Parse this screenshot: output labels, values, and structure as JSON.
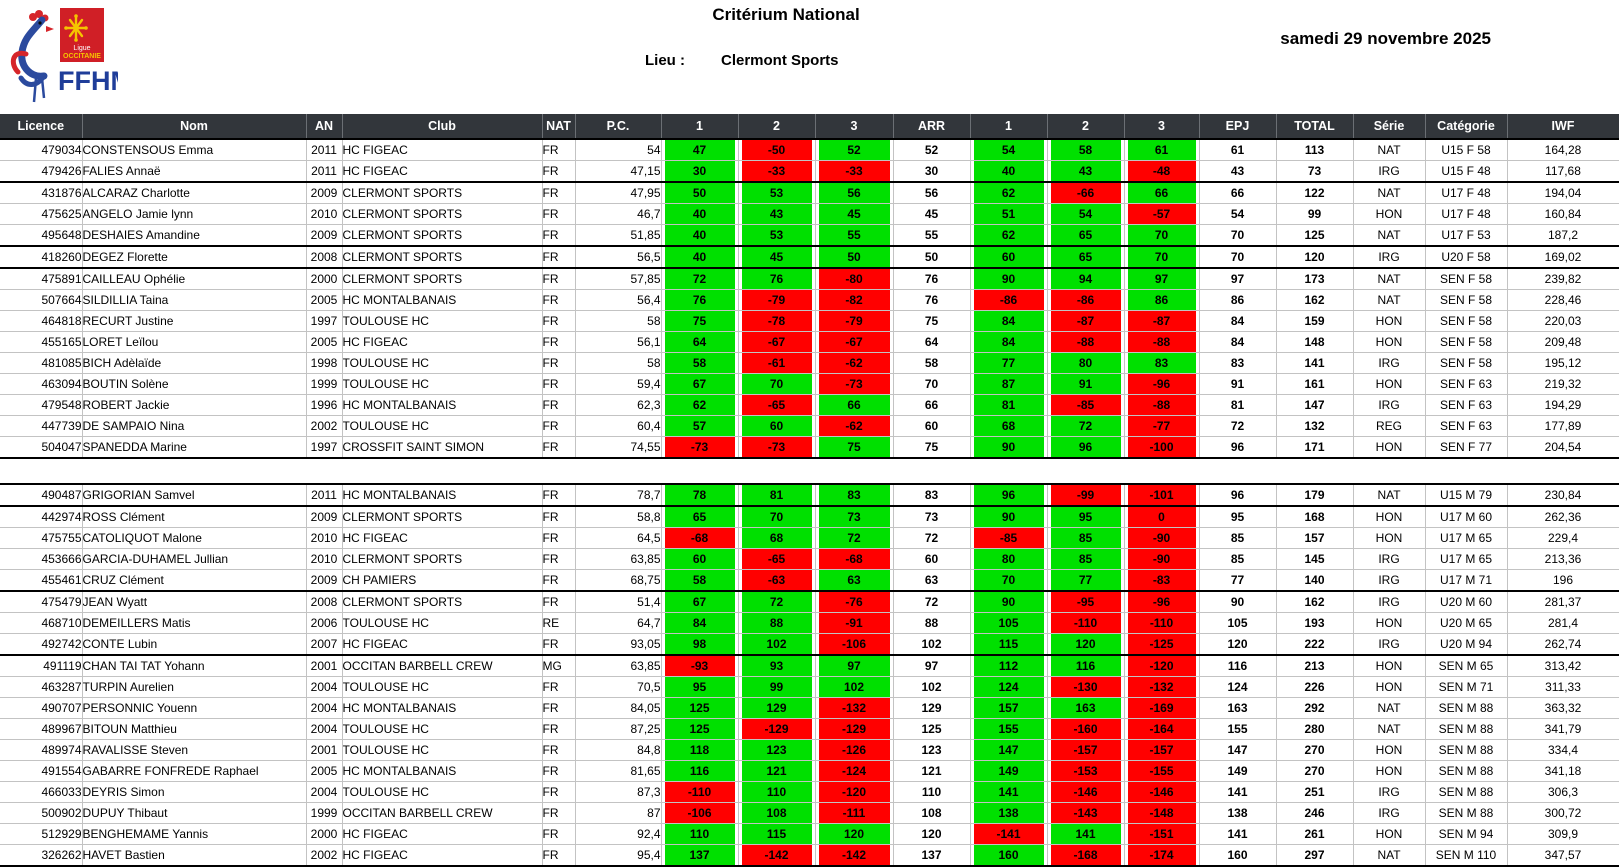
{
  "header": {
    "title": "Critérium National",
    "date": "samedi 29 novembre 2025",
    "lieu_label": "Lieu :",
    "lieu_value": "Clermont Sports",
    "logo": {
      "ffhm": "FFHM",
      "ligue": "Ligue",
      "occitanie": "OCCITANIE"
    }
  },
  "table": {
    "columns": [
      "Licence",
      "Nom",
      "AN",
      "Club",
      "NAT",
      "P.C.",
      "1",
      "2",
      "3",
      "ARR",
      "1",
      "2",
      "3",
      "EPJ",
      "TOTAL",
      "Série",
      "Catégorie",
      "IWF"
    ],
    "colors": {
      "good_lift": "#00e000",
      "failed_lift": "#ff0000",
      "header_bg": "#32363b"
    },
    "sections": [
      {
        "rows": [
          {
            "licence": "479034",
            "nom": "CONSTENSOUS Emma",
            "an": "2011",
            "club": "HC FIGEAC",
            "nat": "FR",
            "pc": "54",
            "s1": 47,
            "s2": -50,
            "s3": 52,
            "arr": "52",
            "c1": 54,
            "c2": 58,
            "c3": 61,
            "epj": "61",
            "total": "113",
            "serie": "NAT",
            "categorie": "U15 F 58",
            "iwf": "164,28",
            "ge": false
          },
          {
            "licence": "479426",
            "nom": "FALIES Annaë",
            "an": "2011",
            "club": "HC FIGEAC",
            "nat": "FR",
            "pc": "47,15",
            "s1": 30,
            "s2": -33,
            "s3": -33,
            "arr": "30",
            "c1": 40,
            "c2": 43,
            "c3": -48,
            "epj": "43",
            "total": "73",
            "serie": "IRG",
            "categorie": "U15 F 48",
            "iwf": "117,68",
            "ge": true
          },
          {
            "licence": "431876",
            "nom": "ALCARAZ Charlotte",
            "an": "2009",
            "club": "CLERMONT SPORTS",
            "nat": "FR",
            "pc": "47,95",
            "s1": 50,
            "s2": 53,
            "s3": 56,
            "arr": "56",
            "c1": 62,
            "c2": -66,
            "c3": 66,
            "epj": "66",
            "total": "122",
            "serie": "NAT",
            "categorie": "U17 F 48",
            "iwf": "194,04",
            "ge": false
          },
          {
            "licence": "475625",
            "nom": "ANGELO Jamie lynn",
            "an": "2010",
            "club": "CLERMONT SPORTS",
            "nat": "FR",
            "pc": "46,7",
            "s1": 40,
            "s2": 43,
            "s3": 45,
            "arr": "45",
            "c1": 51,
            "c2": 54,
            "c3": -57,
            "epj": "54",
            "total": "99",
            "serie": "HON",
            "categorie": "U17 F 48",
            "iwf": "160,84",
            "ge": false
          },
          {
            "licence": "495648",
            "nom": "DESHAIES Amandine",
            "an": "2009",
            "club": "CLERMONT SPORTS",
            "nat": "FR",
            "pc": "51,85",
            "s1": 40,
            "s2": 53,
            "s3": 55,
            "arr": "55",
            "c1": 62,
            "c2": 65,
            "c3": 70,
            "epj": "70",
            "total": "125",
            "serie": "NAT",
            "categorie": "U17 F 53",
            "iwf": "187,2",
            "ge": true
          },
          {
            "licence": "418260",
            "nom": "DEGEZ Florette",
            "an": "2008",
            "club": "CLERMONT SPORTS",
            "nat": "FR",
            "pc": "56,5",
            "s1": 40,
            "s2": 45,
            "s3": 50,
            "arr": "50",
            "c1": 60,
            "c2": 65,
            "c3": 70,
            "epj": "70",
            "total": "120",
            "serie": "IRG",
            "categorie": "U20 F 58",
            "iwf": "169,02",
            "ge": true
          },
          {
            "licence": "475891",
            "nom": "CAILLEAU Ophélie",
            "an": "2000",
            "club": "CLERMONT SPORTS",
            "nat": "FR",
            "pc": "57,85",
            "s1": 72,
            "s2": 76,
            "s3": -80,
            "arr": "76",
            "c1": 90,
            "c2": 94,
            "c3": 97,
            "epj": "97",
            "total": "173",
            "serie": "NAT",
            "categorie": "SEN F 58",
            "iwf": "239,82",
            "ge": false
          },
          {
            "licence": "507664",
            "nom": "SILDILLIA Taina",
            "an": "2005",
            "club": "HC MONTALBANAIS",
            "nat": "FR",
            "pc": "56,4",
            "s1": 76,
            "s2": -79,
            "s3": -82,
            "arr": "76",
            "c1": -86,
            "c2": -86,
            "c3": 86,
            "epj": "86",
            "total": "162",
            "serie": "NAT",
            "categorie": "SEN F 58",
            "iwf": "228,46",
            "ge": false
          },
          {
            "licence": "464818",
            "nom": "RECURT Justine",
            "an": "1997",
            "club": "TOULOUSE HC",
            "nat": "FR",
            "pc": "58",
            "s1": 75,
            "s2": -78,
            "s3": -79,
            "arr": "75",
            "c1": 84,
            "c2": -87,
            "c3": -87,
            "epj": "84",
            "total": "159",
            "serie": "HON",
            "categorie": "SEN F 58",
            "iwf": "220,03",
            "ge": false
          },
          {
            "licence": "455165",
            "nom": "LORET Leïlou",
            "an": "2005",
            "club": "HC FIGEAC",
            "nat": "FR",
            "pc": "56,1",
            "s1": 64,
            "s2": -67,
            "s3": -67,
            "arr": "64",
            "c1": 84,
            "c2": -88,
            "c3": -88,
            "epj": "84",
            "total": "148",
            "serie": "HON",
            "categorie": "SEN F 58",
            "iwf": "209,48",
            "ge": false
          },
          {
            "licence": "481085",
            "nom": "BICH Adèlaïde",
            "an": "1998",
            "club": "TOULOUSE HC",
            "nat": "FR",
            "pc": "58",
            "s1": 58,
            "s2": -61,
            "s3": -62,
            "arr": "58",
            "c1": 77,
            "c2": 80,
            "c3": 83,
            "epj": "83",
            "total": "141",
            "serie": "IRG",
            "categorie": "SEN F 58",
            "iwf": "195,12",
            "ge": false
          },
          {
            "licence": "463094",
            "nom": "BOUTIN Solène",
            "an": "1999",
            "club": "TOULOUSE HC",
            "nat": "FR",
            "pc": "59,4",
            "s1": 67,
            "s2": 70,
            "s3": -73,
            "arr": "70",
            "c1": 87,
            "c2": 91,
            "c3": -96,
            "epj": "91",
            "total": "161",
            "serie": "HON",
            "categorie": "SEN F 63",
            "iwf": "219,32",
            "ge": false
          },
          {
            "licence": "479548",
            "nom": "ROBERT Jackie",
            "an": "1996",
            "club": "HC MONTALBANAIS",
            "nat": "FR",
            "pc": "62,3",
            "s1": 62,
            "s2": -65,
            "s3": 66,
            "arr": "66",
            "c1": 81,
            "c2": -85,
            "c3": -88,
            "epj": "81",
            "total": "147",
            "serie": "IRG",
            "categorie": "SEN F 63",
            "iwf": "194,29",
            "ge": false
          },
          {
            "licence": "447739",
            "nom": "DE SAMPAIO Nina",
            "an": "2002",
            "club": "TOULOUSE HC",
            "nat": "FR",
            "pc": "60,4",
            "s1": 57,
            "s2": 60,
            "s3": -62,
            "arr": "60",
            "c1": 68,
            "c2": 72,
            "c3": -77,
            "epj": "72",
            "total": "132",
            "serie": "REG",
            "categorie": "SEN F 63",
            "iwf": "177,89",
            "ge": false
          },
          {
            "licence": "504047",
            "nom": "SPANEDDA Marine",
            "an": "1997",
            "club": "CROSSFIT SAINT SIMON",
            "nat": "FR",
            "pc": "74,55",
            "s1": -73,
            "s2": -73,
            "s3": 75,
            "arr": "75",
            "c1": 90,
            "c2": 96,
            "c3": -100,
            "epj": "96",
            "total": "171",
            "serie": "HON",
            "categorie": "SEN F 77",
            "iwf": "204,54",
            "ge": true
          }
        ]
      },
      {
        "rows": [
          {
            "licence": "490487",
            "nom": "GRIGORIAN Samvel",
            "an": "2011",
            "club": "HC MONTALBANAIS",
            "nat": "FR",
            "pc": "78,7",
            "s1": 78,
            "s2": 81,
            "s3": 83,
            "arr": "83",
            "c1": 96,
            "c2": -99,
            "c3": -101,
            "epj": "96",
            "total": "179",
            "serie": "NAT",
            "categorie": "U15 M 79",
            "iwf": "230,84",
            "ge": true
          },
          {
            "licence": "442974",
            "nom": "ROSS Clément",
            "an": "2009",
            "club": "CLERMONT SPORTS",
            "nat": "FR",
            "pc": "58,8",
            "s1": 65,
            "s2": 70,
            "s3": 73,
            "arr": "73",
            "c1": 90,
            "c2": 95,
            "c3": 0,
            "epj": "95",
            "total": "168",
            "serie": "HON",
            "categorie": "U17 M 60",
            "iwf": "262,36",
            "ge": false
          },
          {
            "licence": "475755",
            "nom": "CATOLIQUOT Malone",
            "an": "2010",
            "club": "HC FIGEAC",
            "nat": "FR",
            "pc": "64,5",
            "s1": -68,
            "s2": 68,
            "s3": 72,
            "arr": "72",
            "c1": -85,
            "c2": 85,
            "c3": -90,
            "epj": "85",
            "total": "157",
            "serie": "HON",
            "categorie": "U17 M 65",
            "iwf": "229,4",
            "ge": false
          },
          {
            "licence": "453666",
            "nom": "GARCIA-DUHAMEL Jullian",
            "an": "2010",
            "club": "CLERMONT SPORTS",
            "nat": "FR",
            "pc": "63,85",
            "s1": 60,
            "s2": -65,
            "s3": -68,
            "arr": "60",
            "c1": 80,
            "c2": 85,
            "c3": -90,
            "epj": "85",
            "total": "145",
            "serie": "IRG",
            "categorie": "U17 M 65",
            "iwf": "213,36",
            "ge": false
          },
          {
            "licence": "455461",
            "nom": "CRUZ Clément",
            "an": "2009",
            "club": "CH PAMIERS",
            "nat": "FR",
            "pc": "68,75",
            "s1": 58,
            "s2": -63,
            "s3": 63,
            "arr": "63",
            "c1": 70,
            "c2": 77,
            "c3": -83,
            "epj": "77",
            "total": "140",
            "serie": "IRG",
            "categorie": "U17 M 71",
            "iwf": "196",
            "ge": true
          },
          {
            "licence": "475479",
            "nom": "JEAN Wyatt",
            "an": "2008",
            "club": "CLERMONT SPORTS",
            "nat": "FR",
            "pc": "51,4",
            "s1": 67,
            "s2": 72,
            "s3": -76,
            "arr": "72",
            "c1": 90,
            "c2": -95,
            "c3": -96,
            "epj": "90",
            "total": "162",
            "serie": "IRG",
            "categorie": "U20 M 60",
            "iwf": "281,37",
            "ge": false
          },
          {
            "licence": "468710",
            "nom": "DEMEILLERS Matis",
            "an": "2006",
            "club": "TOULOUSE HC",
            "nat": "RE",
            "pc": "64,7",
            "s1": 84,
            "s2": 88,
            "s3": -91,
            "arr": "88",
            "c1": 105,
            "c2": -110,
            "c3": -110,
            "epj": "105",
            "total": "193",
            "serie": "HON",
            "categorie": "U20 M 65",
            "iwf": "281,4",
            "ge": false
          },
          {
            "licence": "492742",
            "nom": "CONTE Lubin",
            "an": "2007",
            "club": "HC FIGEAC",
            "nat": "FR",
            "pc": "93,05",
            "s1": 98,
            "s2": 102,
            "s3": -106,
            "arr": "102",
            "c1": 115,
            "c2": 120,
            "c3": -125,
            "epj": "120",
            "total": "222",
            "serie": "IRG",
            "categorie": "U20 M 94",
            "iwf": "262,74",
            "ge": true
          },
          {
            "licence": "491119",
            "nom": "CHAN TAI TAT Yohann",
            "an": "2001",
            "club": "OCCITAN BARBELL CREW",
            "nat": "MG",
            "pc": "63,85",
            "s1": -93,
            "s2": 93,
            "s3": 97,
            "arr": "97",
            "c1": 112,
            "c2": 116,
            "c3": -120,
            "epj": "116",
            "total": "213",
            "serie": "HON",
            "categorie": "SEN M 65",
            "iwf": "313,42",
            "ge": false
          },
          {
            "licence": "463287",
            "nom": "TURPIN Aurelien",
            "an": "2004",
            "club": "TOULOUSE HC",
            "nat": "FR",
            "pc": "70,5",
            "s1": 95,
            "s2": 99,
            "s3": 102,
            "arr": "102",
            "c1": 124,
            "c2": -130,
            "c3": -132,
            "epj": "124",
            "total": "226",
            "serie": "HON",
            "categorie": "SEN M 71",
            "iwf": "311,33",
            "ge": false
          },
          {
            "licence": "490707",
            "nom": "PERSONNIC Youenn",
            "an": "2004",
            "club": "HC MONTALBANAIS",
            "nat": "FR",
            "pc": "84,05",
            "s1": 125,
            "s2": 129,
            "s3": -132,
            "arr": "129",
            "c1": 157,
            "c2": 163,
            "c3": -169,
            "epj": "163",
            "total": "292",
            "serie": "NAT",
            "categorie": "SEN M 88",
            "iwf": "363,32",
            "ge": false
          },
          {
            "licence": "489967",
            "nom": "BITOUN Matthieu",
            "an": "2004",
            "club": "TOULOUSE HC",
            "nat": "FR",
            "pc": "87,25",
            "s1": 125,
            "s2": -129,
            "s3": -129,
            "arr": "125",
            "c1": 155,
            "c2": -160,
            "c3": -164,
            "epj": "155",
            "total": "280",
            "serie": "NAT",
            "categorie": "SEN M 88",
            "iwf": "341,79",
            "ge": false
          },
          {
            "licence": "489974",
            "nom": "RAVALISSE Steven",
            "an": "2001",
            "club": "TOULOUSE HC",
            "nat": "FR",
            "pc": "84,8",
            "s1": 118,
            "s2": 123,
            "s3": -126,
            "arr": "123",
            "c1": 147,
            "c2": -157,
            "c3": -157,
            "epj": "147",
            "total": "270",
            "serie": "HON",
            "categorie": "SEN M 88",
            "iwf": "334,4",
            "ge": false
          },
          {
            "licence": "491554",
            "nom": "GABARRE FONFREDE Raphael",
            "an": "2005",
            "club": "HC MONTALBANAIS",
            "nat": "FR",
            "pc": "81,65",
            "s1": 116,
            "s2": 121,
            "s3": -124,
            "arr": "121",
            "c1": 149,
            "c2": -153,
            "c3": -155,
            "epj": "149",
            "total": "270",
            "serie": "HON",
            "categorie": "SEN M 88",
            "iwf": "341,18",
            "ge": false
          },
          {
            "licence": "466033",
            "nom": "DEYRIS Simon",
            "an": "2004",
            "club": "TOULOUSE HC",
            "nat": "FR",
            "pc": "87,3",
            "s1": -110,
            "s2": 110,
            "s3": -120,
            "arr": "110",
            "c1": 141,
            "c2": -146,
            "c3": -146,
            "epj": "141",
            "total": "251",
            "serie": "IRG",
            "categorie": "SEN M 88",
            "iwf": "306,3",
            "ge": false
          },
          {
            "licence": "500902",
            "nom": "DUPUY Thibaut",
            "an": "1999",
            "club": "OCCITAN BARBELL CREW",
            "nat": "FR",
            "pc": "87",
            "s1": -106,
            "s2": 108,
            "s3": -111,
            "arr": "108",
            "c1": 138,
            "c2": -143,
            "c3": -148,
            "epj": "138",
            "total": "246",
            "serie": "IRG",
            "categorie": "SEN M 88",
            "iwf": "300,72",
            "ge": false
          },
          {
            "licence": "512929",
            "nom": "BENGHEMAME Yannis",
            "an": "2000",
            "club": "HC FIGEAC",
            "nat": "FR",
            "pc": "92,4",
            "s1": 110,
            "s2": 115,
            "s3": 120,
            "arr": "120",
            "c1": -141,
            "c2": 141,
            "c3": -151,
            "epj": "141",
            "total": "261",
            "serie": "HON",
            "categorie": "SEN M 94",
            "iwf": "309,9",
            "ge": false
          },
          {
            "licence": "326262",
            "nom": "HAVET Bastien",
            "an": "2002",
            "club": "HC FIGEAC",
            "nat": "FR",
            "pc": "95,4",
            "s1": 137,
            "s2": -142,
            "s3": -142,
            "arr": "137",
            "c1": 160,
            "c2": -168,
            "c3": -174,
            "epj": "160",
            "total": "297",
            "serie": "NAT",
            "categorie": "SEN M 110",
            "iwf": "347,57",
            "ge": true
          }
        ]
      }
    ]
  }
}
